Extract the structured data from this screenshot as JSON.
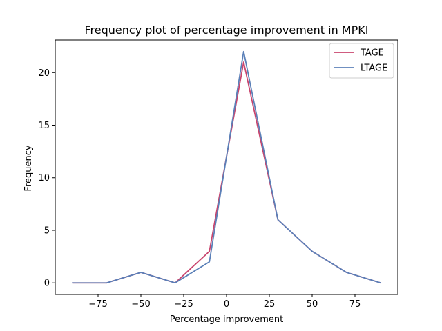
{
  "chart_data": {
    "type": "line",
    "title": "Frequency plot of percentage improvement in MPKI",
    "xlabel": "Percentage improvement",
    "ylabel": "Frequency",
    "x": [
      -90,
      -70,
      -50,
      -30,
      -10,
      10,
      30,
      50,
      70,
      90
    ],
    "xlim": [
      -100,
      100
    ],
    "ylim": [
      -1.1,
      23.1
    ],
    "xticks": [
      -75,
      -50,
      -25,
      0,
      25,
      50,
      75
    ],
    "xtick_labels": [
      "−75",
      "−50",
      "−25",
      "0",
      "25",
      "50",
      "75"
    ],
    "yticks": [
      0,
      5,
      10,
      15,
      20
    ],
    "ytick_labels": [
      "0",
      "5",
      "10",
      "15",
      "20"
    ],
    "grid": false,
    "legend_position": "top-right",
    "series": [
      {
        "name": "TAGE",
        "color": "#c9456e",
        "values": [
          0,
          0,
          1,
          0,
          3,
          21,
          6,
          3,
          1,
          0
        ]
      },
      {
        "name": "LTAGE",
        "color": "#5b80b8",
        "values": [
          0,
          0,
          1,
          0,
          2,
          22,
          6,
          3,
          1,
          0
        ]
      }
    ]
  }
}
